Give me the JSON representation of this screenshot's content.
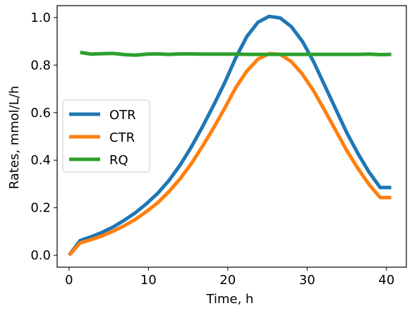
{
  "chart_data": {
    "type": "line",
    "xlabel": "Time, h",
    "ylabel": "Rates, mmol/L/h",
    "xlim": [
      -1.5,
      42.5
    ],
    "ylim": [
      -0.05,
      1.05
    ],
    "xticks": [
      0,
      10,
      20,
      30,
      40
    ],
    "yticks": [
      0.0,
      0.2,
      0.4,
      0.6,
      0.8,
      1.0
    ],
    "xtick_labels": [
      "0",
      "10",
      "20",
      "30",
      "40"
    ],
    "ytick_labels": [
      "0.0",
      "0.2",
      "0.4",
      "0.6",
      "0.8",
      "1.0"
    ],
    "grid": false,
    "legend_position": "center-left",
    "series": [
      {
        "name": "OTR",
        "color": "#1f77b4",
        "x": [
          0,
          1.4,
          2.8,
          4.2,
          5.6,
          7.0,
          8.4,
          9.8,
          11.2,
          12.6,
          14.0,
          15.4,
          16.8,
          18.2,
          19.6,
          21.0,
          22.4,
          23.8,
          25.2,
          26.6,
          28.0,
          29.4,
          30.8,
          32.2,
          33.6,
          35.0,
          36.4,
          37.8,
          39.2,
          40.6
        ],
        "y": [
          0.0,
          0.062,
          0.078,
          0.097,
          0.12,
          0.148,
          0.18,
          0.218,
          0.262,
          0.315,
          0.38,
          0.455,
          0.54,
          0.63,
          0.725,
          0.83,
          0.92,
          0.98,
          1.005,
          0.998,
          0.962,
          0.9,
          0.815,
          0.715,
          0.615,
          0.515,
          0.428,
          0.35,
          0.285,
          0.285
        ]
      },
      {
        "name": "CTR",
        "color": "#ff7f0e",
        "x": [
          0,
          1.4,
          2.8,
          4.2,
          5.6,
          7.0,
          8.4,
          9.8,
          11.2,
          12.6,
          14.0,
          15.4,
          16.8,
          18.2,
          19.6,
          21.0,
          22.4,
          23.8,
          25.2,
          26.6,
          28.0,
          29.4,
          30.8,
          32.2,
          33.6,
          35.0,
          36.4,
          37.8,
          39.2,
          40.6
        ],
        "y": [
          0.0,
          0.052,
          0.066,
          0.082,
          0.102,
          0.125,
          0.152,
          0.185,
          0.222,
          0.268,
          0.322,
          0.385,
          0.458,
          0.535,
          0.618,
          0.705,
          0.775,
          0.825,
          0.848,
          0.845,
          0.815,
          0.762,
          0.692,
          0.61,
          0.525,
          0.44,
          0.365,
          0.298,
          0.243,
          0.243
        ]
      },
      {
        "name": "RQ",
        "color": "#2ca02c",
        "x": [
          1.4,
          2.8,
          4.2,
          5.6,
          7.0,
          8.4,
          9.8,
          11.2,
          12.6,
          14.0,
          15.4,
          16.8,
          18.2,
          19.6,
          21.0,
          22.4,
          23.8,
          25.2,
          26.6,
          28.0,
          29.4,
          30.8,
          32.2,
          33.6,
          35.0,
          36.4,
          37.8,
          39.2,
          40.6
        ],
        "y": [
          0.853,
          0.846,
          0.848,
          0.849,
          0.844,
          0.842,
          0.846,
          0.847,
          0.845,
          0.847,
          0.847,
          0.846,
          0.846,
          0.846,
          0.846,
          0.845,
          0.845,
          0.845,
          0.845,
          0.845,
          0.845,
          0.845,
          0.845,
          0.845,
          0.845,
          0.845,
          0.846,
          0.844,
          0.845
        ]
      }
    ]
  }
}
